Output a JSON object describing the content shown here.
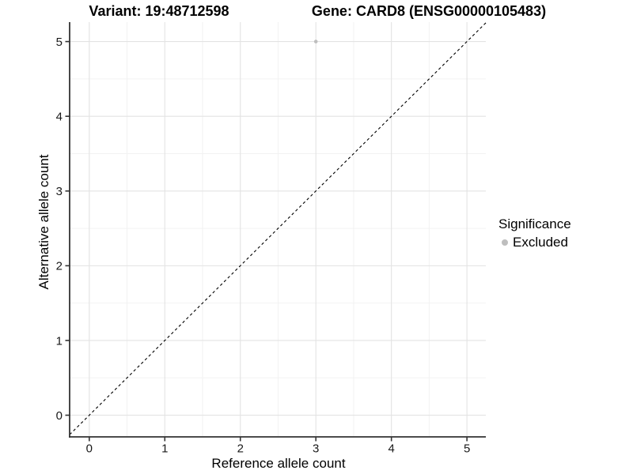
{
  "page": {
    "background": "#ffffff"
  },
  "chart_data": {
    "type": "scatter",
    "titles": {
      "left": "Variant: 19:48712598",
      "right": "Gene: CARD8 (ENSG00000105483)"
    },
    "xlabel": "Reference allele count",
    "ylabel": "Alternative allele count",
    "x_ticks": [
      0,
      1,
      2,
      3,
      4,
      5
    ],
    "y_ticks": [
      0,
      1,
      2,
      3,
      4,
      5
    ],
    "xlim": [
      -0.26,
      5.25
    ],
    "ylim": [
      -0.29,
      5.26
    ],
    "grid": {
      "major": true,
      "minor": true
    },
    "reference_line": {
      "type": "identity y = x",
      "style": "dashed",
      "color": "#000000"
    },
    "series": [
      {
        "name": "Excluded",
        "color": "#bebebe",
        "points": [
          {
            "x": 3,
            "y": 5
          }
        ]
      }
    ],
    "legend": {
      "title": "Significance",
      "position": "right",
      "items": [
        {
          "label": "Excluded",
          "color": "#bebebe"
        }
      ]
    }
  },
  "colors": {
    "grid_major": "#e3e3e3",
    "grid_minor": "#f2f2f2",
    "axis_line": "#333333",
    "tick_text": "#191919",
    "title_text": "#000000"
  }
}
